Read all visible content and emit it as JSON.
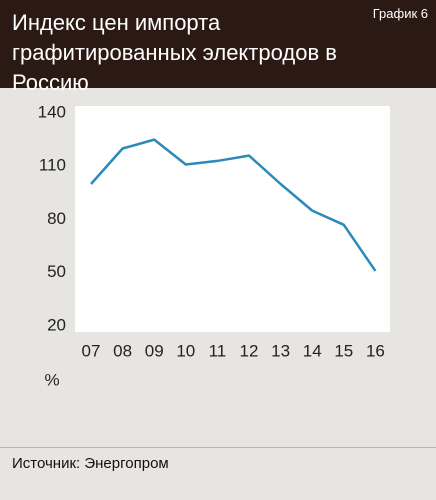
{
  "chart_data": {
    "type": "line",
    "title": "Индекс цен импорта графитированных электродов в Россию",
    "label": "График 6",
    "y_label": "%",
    "source": "Источник: Энергопром",
    "categories": [
      "07",
      "08",
      "09",
      "10",
      "11",
      "12",
      "13",
      "14",
      "15",
      "16"
    ],
    "series": [
      {
        "name": "Индекс цен импорта",
        "color": "#2a8ab8",
        "values": [
          100,
          120,
          125,
          111,
          113,
          116,
          100,
          85,
          77,
          51
        ]
      }
    ],
    "ylim": [
      20,
      140
    ],
    "yticks": [
      20,
      50,
      80,
      110,
      140
    ],
    "grid": false
  }
}
